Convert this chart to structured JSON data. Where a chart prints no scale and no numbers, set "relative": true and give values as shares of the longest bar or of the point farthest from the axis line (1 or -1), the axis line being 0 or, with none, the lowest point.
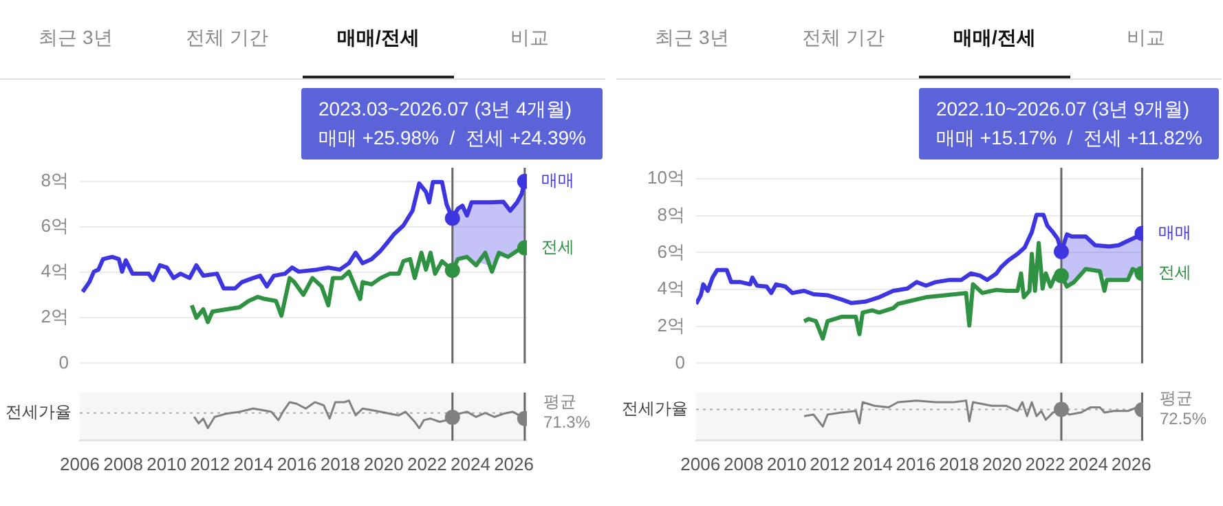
{
  "chart_data": [
    {
      "type": "line",
      "annotations": [
        "최근 3년",
        "전체 기간",
        "매매/전세",
        "비교",
        "2023.03~2026.07 (3년 4개월)",
        "매매 +25.98%  /  전세 +24.39%"
      ],
      "xlim": [
        2006,
        2026.6
      ],
      "xticks": [
        2006,
        2008,
        2010,
        2012,
        2014,
        2016,
        2018,
        2020,
        2022,
        2024,
        2026
      ],
      "ylim": [
        0,
        8.6
      ],
      "yticks": [
        0,
        {
          "value": 2,
          "label": "2억"
        },
        {
          "value": 4,
          "label": "4억"
        },
        {
          "value": 6,
          "label": "6억"
        },
        {
          "value": 8,
          "label": "8억"
        }
      ],
      "grid": "y",
      "legend": false,
      "tick_labels": "y",
      "series": [
        {
          "name": "매매",
          "color": "#3d35e0",
          "lower": [
            null,
            null,
            null,
            null,
            null,
            null,
            null,
            null,
            null,
            null,
            null,
            null,
            null,
            null,
            null,
            null,
            null,
            null,
            null,
            null,
            null,
            null,
            null,
            null,
            null,
            null,
            null,
            null,
            null,
            null,
            null,
            null,
            null,
            null,
            null,
            null,
            null,
            null,
            null,
            null,
            null,
            null,
            null,
            null,
            null,
            null,
            null,
            null,
            4.09,
            4.58,
            4.63,
            4.68,
            4.5,
            4.3,
            4.77,
            4.75,
            4.95,
            5.0,
            5.08
          ],
          "upper": [
            null,
            null,
            null,
            null,
            null,
            null,
            null,
            null,
            null,
            null,
            null,
            null,
            null,
            null,
            null,
            null,
            null,
            null,
            null,
            null,
            null,
            null,
            null,
            null,
            null,
            null,
            null,
            null,
            null,
            null,
            null,
            null,
            null,
            null,
            null,
            null,
            null,
            null,
            null,
            null,
            null,
            null,
            null,
            null,
            null,
            null,
            null,
            null,
            6.38,
            6.8,
            6.93,
            6.5,
            7.08,
            7.08,
            7.1,
            6.71,
            7.08,
            7.45,
            8.0
          ],
          "x": [
            2006.13,
            2006.44,
            2006.65,
            2006.86,
            2007.07,
            2007.49,
            2007.8,
            2007.95,
            2008.12,
            2008.43,
            2009.17,
            2009.38,
            2009.69,
            2010.01,
            2010.32,
            2010.64,
            2011.06,
            2011.37,
            2011.69,
            2012.32,
            2012.63,
            2013.15,
            2013.47,
            2013.99,
            2014.31,
            2014.62,
            2014.94,
            2015.46,
            2015.78,
            2016.09,
            2016.93,
            2017.45,
            2017.98,
            2018.4,
            2018.71,
            2019.03,
            2019.44,
            2019.86,
            2020.18,
            2020.49,
            2020.91,
            2021.33,
            2021.64,
            2021.95,
            2022.1,
            2022.27,
            2022.69,
            2022.9,
            2023.17,
            2023.42,
            2023.63,
            2023.84,
            2024.05,
            2024.89,
            2025.52,
            2025.83,
            2026.15,
            2026.36,
            2026.5
          ],
          "values": [
            3.14,
            3.57,
            4.03,
            4.12,
            4.58,
            4.68,
            4.58,
            4.03,
            4.53,
            3.94,
            3.94,
            3.66,
            4.31,
            4.21,
            3.75,
            3.94,
            3.75,
            4.31,
            3.85,
            3.94,
            3.29,
            3.29,
            3.57,
            3.75,
            3.85,
            3.38,
            3.85,
            3.94,
            4.21,
            4.03,
            4.12,
            4.21,
            4.12,
            4.4,
            4.86,
            4.4,
            4.58,
            4.95,
            5.32,
            5.69,
            6.06,
            6.71,
            7.91,
            7.54,
            7.08,
            7.97,
            7.97,
            6.99,
            6.38,
            6.8,
            6.93,
            6.5,
            7.08,
            7.08,
            7.1,
            6.71,
            7.08,
            7.45,
            8.0
          ]
        },
        {
          "name": "전세",
          "color": "#2f9142",
          "x": [
            2011.16,
            2011.37,
            2011.69,
            2011.9,
            2012.11,
            2012.74,
            2013.36,
            2013.78,
            2014.2,
            2014.52,
            2015.04,
            2015.29,
            2015.46,
            2015.67,
            2015.88,
            2016.3,
            2016.72,
            2017.14,
            2017.45,
            2017.66,
            2018.08,
            2018.4,
            2018.92,
            2019.03,
            2019.44,
            2019.86,
            2020.28,
            2020.7,
            2020.91,
            2021.22,
            2021.43,
            2021.74,
            2021.95,
            2022.16,
            2022.37,
            2022.69,
            2023.17,
            2023.42,
            2023.84,
            2024.26,
            2024.68,
            2024.99,
            2025.31,
            2025.73,
            2026.15,
            2026.5
          ],
          "values": [
            2.55,
            2.0,
            2.37,
            1.81,
            2.27,
            2.37,
            2.46,
            2.74,
            2.92,
            2.83,
            2.74,
            2.09,
            2.83,
            3.75,
            3.57,
            3.01,
            3.75,
            3.38,
            2.55,
            3.75,
            3.75,
            4.03,
            2.83,
            3.57,
            3.47,
            3.75,
            3.94,
            3.94,
            4.49,
            4.58,
            3.75,
            4.86,
            4.12,
            4.86,
            3.94,
            4.49,
            4.09,
            4.58,
            4.68,
            4.31,
            4.86,
            4.03,
            4.86,
            4.68,
            4.95,
            5.08
          ]
        }
      ],
      "ref_lines": [
        {
          "axis": "x",
          "value": 2023.17,
          "label": null,
          "color": "#666666"
        },
        {
          "axis": "x",
          "value": 2026.5,
          "label": null,
          "color": "#666666"
        }
      ]
    },
    {
      "type": "line",
      "relative": true,
      "annotations": [
        "전세가율"
      ],
      "xlim": [
        2006,
        2026.6
      ],
      "xticks": [
        2006,
        2008,
        2010,
        2012,
        2014,
        2016,
        2018,
        2020,
        2022,
        2024,
        2026
      ],
      "legend": false,
      "tick_labels": "x",
      "series": [
        {
          "color": "#808080",
          "x": [
            2011.27,
            2011.48,
            2011.69,
            2011.9,
            2012.21,
            2012.74,
            2013.36,
            2013.99,
            2014.41,
            2014.83,
            2015.15,
            2015.36,
            2015.67,
            2015.99,
            2016.41,
            2016.83,
            2017.24,
            2017.51,
            2017.77,
            2018.19,
            2018.4,
            2018.71,
            2019.03,
            2019.44,
            2019.86,
            2020.28,
            2020.7,
            2021.01,
            2021.43,
            2021.64,
            2021.85,
            2022.16,
            2022.58,
            2022.9,
            2023.17,
            2023.42,
            2023.84,
            2024.26,
            2024.68,
            2025.1,
            2025.52,
            2025.94,
            2026.25,
            2026.5
          ],
          "values": [
            0.59,
            0.43,
            0.55,
            0.31,
            0.59,
            0.67,
            0.72,
            0.8,
            0.76,
            0.72,
            0.51,
            0.72,
            0.96,
            0.92,
            0.8,
            0.96,
            0.88,
            0.55,
            0.96,
            0.96,
            1,
            0.63,
            0.8,
            0.76,
            0.72,
            0.67,
            0.63,
            0.72,
            0.47,
            0.31,
            0.51,
            0.55,
            0.47,
            0.51,
            0.58,
            0.66,
            0.72,
            0.59,
            0.69,
            0.59,
            0.67,
            0.72,
            0.63,
            0.55
          ]
        }
      ],
      "ref_lines": [
        {
          "axis": "x",
          "value": 2023.17,
          "label": null,
          "color": "#666666"
        },
        {
          "axis": "x",
          "value": 2026.5,
          "label": null,
          "color": "#666666"
        },
        {
          "axis": "y",
          "value": 0.69,
          "label": "평균 71.3%",
          "color": "#aaaaaa",
          "line_style": "dotted"
        }
      ]
    },
    {
      "type": "line",
      "annotations": [
        "최근 3년",
        "전체 기간",
        "매매/전세",
        "비교",
        "2022.10~2026.07 (3년 9개월)",
        "매매 +15.17%  /  전세 +11.82%"
      ],
      "xlim": [
        2005.8,
        2026.55
      ],
      "xticks": [
        2006,
        2008,
        2010,
        2012,
        2014,
        2016,
        2018,
        2020,
        2022,
        2024,
        2026
      ],
      "ylim": [
        0,
        10.6
      ],
      "yticks": [
        0,
        {
          "value": 2,
          "label": "2억"
        },
        {
          "value": 4,
          "label": "4억"
        },
        {
          "value": 6,
          "label": "6억"
        },
        {
          "value": 8,
          "label": "8억"
        },
        {
          "value": 10,
          "label": "10억"
        }
      ],
      "grid": "y",
      "legend": false,
      "tick_labels": "y",
      "series": [
        {
          "name": "매매",
          "color": "#3d35e0",
          "lower": [
            null,
            null,
            null,
            null,
            null,
            null,
            null,
            null,
            null,
            null,
            null,
            null,
            null,
            null,
            null,
            null,
            null,
            null,
            null,
            null,
            null,
            null,
            null,
            null,
            null,
            null,
            null,
            null,
            null,
            null,
            null,
            null,
            null,
            null,
            null,
            null,
            null,
            null,
            null,
            null,
            null,
            null,
            null,
            null,
            null,
            4.75,
            4.16,
            4.3,
            5.11,
            5.03,
            4.52,
            4.52,
            4.52,
            5.0,
            4.87
          ],
          "upper": [
            null,
            null,
            null,
            null,
            null,
            null,
            null,
            null,
            null,
            null,
            null,
            null,
            null,
            null,
            null,
            null,
            null,
            null,
            null,
            null,
            null,
            null,
            null,
            null,
            null,
            null,
            null,
            null,
            null,
            null,
            null,
            null,
            null,
            null,
            null,
            null,
            null,
            null,
            null,
            null,
            null,
            null,
            null,
            null,
            null,
            6.05,
            6.99,
            6.87,
            6.87,
            6.4,
            6.33,
            6.4,
            6.64,
            6.87,
            7.04
          ],
          "x": [
            2005.8,
            2006.02,
            2006.13,
            2006.34,
            2006.56,
            2006.78,
            2007.22,
            2007.43,
            2007.87,
            2008.31,
            2008.41,
            2008.63,
            2009.07,
            2009.29,
            2009.51,
            2009.94,
            2010.27,
            2010.81,
            2011.25,
            2011.9,
            2012.55,
            2012.99,
            2013.64,
            2014.3,
            2014.95,
            2015.6,
            2016.04,
            2016.47,
            2016.91,
            2017.56,
            2018.11,
            2018.55,
            2018.98,
            2019.31,
            2019.74,
            2019.96,
            2020.29,
            2020.72,
            2021.05,
            2021.38,
            2021.6,
            2021.92,
            2022.1,
            2022.36,
            2022.58,
            2022.75,
            2023.01,
            2023.23,
            2023.88,
            2024.32,
            2024.97,
            2025.41,
            2025.84,
            2026.28,
            2026.5
          ],
          "values": [
            3.22,
            3.69,
            4.28,
            3.93,
            4.64,
            5.06,
            5.06,
            4.4,
            4.4,
            4.28,
            4.64,
            4.21,
            4.16,
            3.81,
            4.28,
            4.16,
            3.81,
            3.93,
            3.74,
            3.69,
            3.46,
            3.27,
            3.34,
            3.58,
            3.93,
            4.05,
            4.4,
            4.21,
            4.4,
            4.52,
            4.52,
            4.87,
            4.75,
            4.52,
            4.87,
            5.22,
            5.58,
            5.93,
            6.28,
            7.11,
            8.05,
            8.05,
            7.46,
            7.11,
            6.75,
            6.05,
            6.99,
            6.87,
            6.87,
            6.4,
            6.33,
            6.4,
            6.64,
            6.87,
            7.04
          ]
        },
        {
          "name": "전세",
          "color": "#2f9142",
          "x": [
            2010.81,
            2011.03,
            2011.36,
            2011.68,
            2011.9,
            2012.55,
            2013.21,
            2013.38,
            2013.53,
            2013.97,
            2014.3,
            2014.95,
            2015.17,
            2015.6,
            2016.47,
            2017.35,
            2018.33,
            2018.48,
            2018.65,
            2019.09,
            2019.74,
            2020.18,
            2020.72,
            2020.88,
            2021.01,
            2021.27,
            2021.38,
            2021.53,
            2021.7,
            2021.88,
            2022.03,
            2022.25,
            2022.47,
            2022.75,
            2023.01,
            2023.34,
            2023.88,
            2024.54,
            2024.75,
            2024.86,
            2025.84,
            2026.06,
            2026.5
          ],
          "values": [
            2.28,
            2.4,
            2.28,
            1.34,
            2.28,
            2.52,
            2.52,
            1.58,
            2.75,
            2.87,
            2.75,
            2.99,
            3.22,
            3.34,
            3.58,
            3.69,
            3.81,
            2.05,
            4.28,
            3.81,
            3.98,
            3.93,
            3.93,
            4.87,
            3.58,
            3.93,
            5.93,
            3.93,
            6.52,
            4.05,
            4.87,
            4.16,
            4.75,
            4.75,
            4.16,
            4.4,
            5.11,
            4.99,
            3.93,
            4.52,
            4.52,
            5.11,
            4.87
          ]
        }
      ],
      "ref_lines": [
        {
          "axis": "x",
          "value": 2022.75,
          "label": null,
          "color": "#666666"
        },
        {
          "axis": "x",
          "value": 2026.5,
          "label": null,
          "color": "#666666"
        }
      ]
    },
    {
      "type": "line",
      "relative": true,
      "annotations": [
        "전세가율"
      ],
      "xlim": [
        2005.8,
        2026.55
      ],
      "xticks": [
        2006,
        2008,
        2010,
        2012,
        2014,
        2016,
        2018,
        2020,
        2022,
        2024,
        2026
      ],
      "legend": false,
      "tick_labels": "x",
      "series": [
        {
          "color": "#808080",
          "x": [
            2010.81,
            2011.25,
            2011.68,
            2011.9,
            2012.55,
            2013.21,
            2013.38,
            2013.53,
            2014.08,
            2014.73,
            2015.17,
            2016.04,
            2016.91,
            2017.78,
            2018.33,
            2018.48,
            2018.65,
            2019.52,
            2020.18,
            2020.72,
            2020.94,
            2021.16,
            2021.38,
            2021.6,
            2021.82,
            2022.03,
            2022.36,
            2022.75,
            2023.12,
            2023.66,
            2024.1,
            2024.54,
            2024.75,
            2025.19,
            2025.84,
            2026.28,
            2026.5
          ],
          "values": [
            0.61,
            0.65,
            0.35,
            0.65,
            0.7,
            0.74,
            0.43,
            0.96,
            0.87,
            0.83,
            0.96,
            1,
            0.96,
            0.96,
            1,
            0.48,
            0.96,
            0.87,
            0.87,
            0.74,
            0.96,
            0.61,
            0.96,
            0.61,
            0.74,
            0.52,
            0.7,
            0.78,
            0.65,
            0.7,
            0.83,
            0.83,
            0.7,
            0.74,
            0.74,
            0.83,
            0.77
          ]
        }
      ],
      "ref_lines": [
        {
          "axis": "x",
          "value": 2022.75,
          "label": null,
          "color": "#666666"
        },
        {
          "axis": "x",
          "value": 2026.5,
          "label": null,
          "color": "#666666"
        },
        {
          "axis": "y",
          "value": 0.78,
          "label": "평균 72.5%",
          "color": "#aaaaaa",
          "line_style": "dotted"
        }
      ]
    }
  ]
}
